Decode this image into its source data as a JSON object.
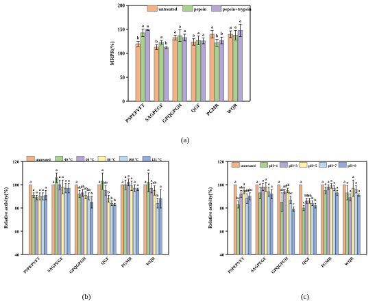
{
  "chart_data": [
    {
      "panel_label": "(a)",
      "type": "bar",
      "title": "",
      "xlabel": "",
      "ylabel": "MRPR(%)",
      "ylim": [
        0,
        200
      ],
      "yticks": [
        "0",
        "50",
        "100",
        "150",
        "200"
      ],
      "grid": false,
      "legend_position": "top",
      "categories": [
        "PSPEPVFT",
        "SAGPEGF",
        "GPQGPGH",
        "QGF",
        "PGMR",
        "WQR"
      ],
      "series": [
        {
          "name": "untreated",
          "color": "#F4B183",
          "values": [
            120,
            113,
            133,
            124,
            140,
            140
          ],
          "errors": [
            5,
            5,
            5,
            7,
            8,
            7
          ],
          "letters": [
            "b",
            "b",
            "a",
            "a",
            "a",
            "a"
          ]
        },
        {
          "name": "pepsin",
          "color": "#A9D18E",
          "values": [
            143,
            123,
            137,
            127,
            122,
            138
          ],
          "errors": [
            8,
            4,
            12,
            9,
            7,
            10
          ],
          "letters": [
            "a",
            "a",
            "a",
            "a",
            "b",
            "a"
          ]
        },
        {
          "name": "pepsin+trypsin",
          "color": "#B4A7D6",
          "values": [
            149,
            112,
            133,
            126,
            127,
            148
          ],
          "errors": [
            1,
            2,
            7,
            6,
            7,
            13
          ],
          "letters": [
            "a",
            "b",
            "a",
            "a",
            "b",
            "a"
          ]
        }
      ]
    },
    {
      "panel_label": "(b)",
      "type": "bar",
      "title": "",
      "xlabel": "",
      "ylabel": "Relative activity(%)",
      "ylim": [
        40,
        120
      ],
      "yticks": [
        "40",
        "60",
        "80",
        "100",
        "120"
      ],
      "grid": false,
      "legend_position": "top",
      "categories": [
        "PSPEPVFT",
        "SAGPEGF",
        "GPQGPGH",
        "QGF",
        "PGMR",
        "WQR"
      ],
      "series": [
        {
          "name": "untreated",
          "color": "#F4B183",
          "values": [
            100,
            100,
            100,
            100,
            100,
            100
          ],
          "errors": [
            0,
            0,
            0,
            0,
            0,
            0
          ],
          "letters": [
            "a",
            "a",
            "a",
            "a",
            "a",
            "a"
          ]
        },
        {
          "name": "40 °C",
          "color": "#A9D18E",
          "values": [
            91,
            106,
            92,
            103,
            100,
            102
          ],
          "errors": [
            2,
            4,
            3,
            7,
            4,
            8
          ],
          "letters": [
            "a",
            "a",
            "ab",
            "a",
            "a",
            "a"
          ]
        },
        {
          "name": "60 °C",
          "color": "#B4A7D6",
          "values": [
            89,
            100,
            93,
            95,
            102,
            97
          ],
          "errors": [
            2,
            4,
            3,
            4,
            3,
            4
          ],
          "letters": [
            "a",
            "a",
            "ab",
            "ab",
            "a",
            "a"
          ]
        },
        {
          "name": "80 °C",
          "color": "#FFF2A8",
          "values": [
            90,
            98,
            91,
            88,
            99,
            95
          ],
          "errors": [
            3,
            6,
            3,
            3,
            4,
            4
          ],
          "letters": [
            "a",
            "a",
            "ab",
            "b",
            "a",
            "ab"
          ]
        },
        {
          "name": "100 °C",
          "color": "#BDD7EE",
          "values": [
            90,
            97,
            90,
            84,
            97,
            84
          ],
          "errors": [
            3,
            4,
            3,
            2,
            3,
            4
          ],
          "letters": [
            "a",
            "a",
            "ab",
            "b",
            "a",
            "b"
          ]
        },
        {
          "name": "121 °C",
          "color": "#8FAADC",
          "values": [
            91,
            97,
            85,
            83,
            96,
            88
          ],
          "errors": [
            4,
            4,
            5,
            1,
            1,
            8
          ],
          "letters": [
            "a",
            "a",
            "b",
            "b",
            "a",
            "a"
          ]
        }
      ]
    },
    {
      "panel_label": "(c)",
      "type": "bar",
      "title": "",
      "xlabel": "",
      "ylabel": "Relative activity(%)",
      "ylim": [
        40,
        120
      ],
      "yticks": [
        "40",
        "60",
        "80",
        "100",
        "120"
      ],
      "grid": false,
      "legend_position": "top",
      "categories": [
        "PSPEPVFT",
        "SAGPEGF",
        "GPQGPGH",
        "QGF",
        "PGMR",
        "WQR"
      ],
      "series": [
        {
          "name": "untreated",
          "color": "#F4B183",
          "values": [
            100,
            100,
            100,
            100,
            100,
            100
          ],
          "errors": [
            0,
            0,
            0,
            0,
            0,
            0
          ],
          "letters": [
            "a",
            "a",
            "a",
            "a",
            "a",
            "a"
          ]
        },
        {
          "name": "pH=1",
          "color": "#A9D18E",
          "values": [
            83,
            93,
            85,
            80,
            95,
            93
          ],
          "errors": [
            3,
            5,
            8,
            2,
            3,
            6
          ],
          "letters": [
            "bc",
            "a",
            "ab",
            "c",
            "a",
            "a"
          ]
        },
        {
          "name": "pH=3",
          "color": "#B4A7D6",
          "values": [
            92,
            98,
            94,
            86,
            98,
            89
          ],
          "errors": [
            3,
            3,
            2,
            2,
            2,
            3
          ],
          "letters": [
            "ab",
            "a",
            "ab",
            "bb",
            "a",
            "a"
          ]
        },
        {
          "name": "pH=5",
          "color": "#FFF2A8",
          "values": [
            95,
            98,
            95,
            86,
            99,
            97
          ],
          "errors": [
            3,
            4,
            2,
            2,
            2,
            7
          ],
          "letters": [
            "a",
            "a",
            "ab",
            "bb",
            "a",
            "a"
          ]
        },
        {
          "name": "pH=7",
          "color": "#BDD7EE",
          "values": [
            88,
            94,
            87,
            84,
            97,
            96
          ],
          "errors": [
            4,
            4,
            3,
            2,
            2,
            3
          ],
          "letters": [
            "abc",
            "a",
            "bc",
            "b",
            "a",
            "a"
          ]
        },
        {
          "name": "pH=9",
          "color": "#8FAADC",
          "values": [
            90,
            92,
            79,
            82,
            93,
            91
          ],
          "errors": [
            3,
            4,
            2,
            2,
            2,
            1
          ],
          "letters": [
            "abc",
            "a",
            "c",
            "b",
            "a",
            "a"
          ]
        }
      ]
    }
  ]
}
